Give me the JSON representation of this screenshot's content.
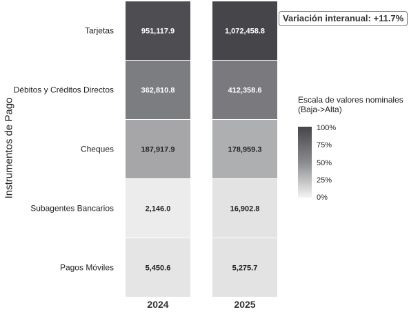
{
  "chart_data": {
    "type": "heatmap",
    "ylabel": "Instrumentos de Pago",
    "x_categories": [
      "2024",
      "2025"
    ],
    "y_categories": [
      "Tarjetas",
      "Débitos y Créditos Directos",
      "Cheques",
      "Subagentes Bancarios",
      "Pagos Móviles"
    ],
    "values": [
      [
        951117.9,
        1072458.8
      ],
      [
        362810.8,
        412358.6
      ],
      [
        187917.9,
        178959.3
      ],
      [
        2146.0,
        16902.8
      ],
      [
        5450.6,
        5275.7
      ]
    ],
    "value_labels": [
      [
        "951,117.9",
        "1,072,458.8"
      ],
      [
        "362,810.8",
        "412,358.6"
      ],
      [
        "187,917.9",
        "178,959.3"
      ],
      [
        "2,146.0",
        "16,902.8"
      ],
      [
        "5,450.6",
        "5,275.7"
      ]
    ],
    "cell_shading": [
      [
        0.94,
        1.0
      ],
      [
        0.6,
        0.62
      ],
      [
        0.37,
        0.33
      ],
      [
        0.04,
        0.08
      ],
      [
        0.07,
        0.08
      ]
    ],
    "legend": {
      "title_lines": [
        "Escala de valores nominales",
        "(Baja->Alta)"
      ],
      "ticks": [
        "100%",
        "75%",
        "50%",
        "25%",
        "0%"
      ],
      "colors": [
        "#46464a",
        "#8a8b8e",
        "#f4f4f4"
      ],
      "placement": "right"
    },
    "annotation": "Variación interanual: +11.7%"
  }
}
